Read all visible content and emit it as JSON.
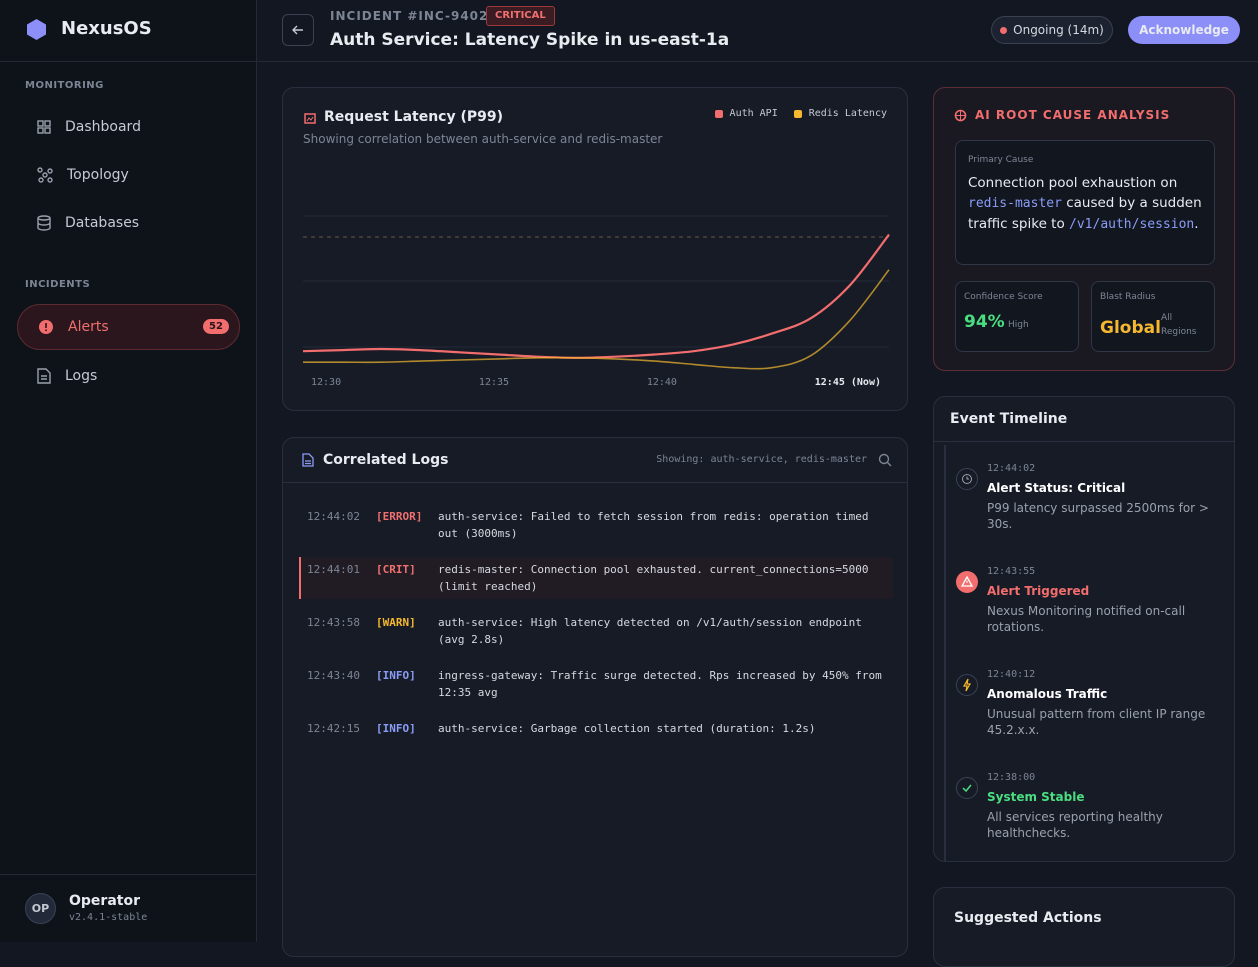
{
  "sidebar": {
    "brand": "NexusOS",
    "monitoring": {
      "title": "MONITORING",
      "items": [
        "Dashboard",
        "Topology",
        "Databases"
      ]
    },
    "incidents": {
      "title": "INCIDENTS",
      "items": [
        {
          "label": "Alerts",
          "badge": 52
        },
        {
          "label": "Logs"
        }
      ]
    },
    "user": {
      "initials": "OP",
      "name": "Operator",
      "version": "v2.4.1-stable"
    }
  },
  "header": {
    "incident_id": "INCIDENT #INC-9402",
    "severity": "CRITICAL",
    "title": "Auth Service: Latency Spike in us-east-1a",
    "status": "Ongoing (14m)",
    "action": "Acknowledge"
  },
  "chart_data": {
    "type": "line",
    "title": "Request Latency (P99)",
    "subtitle": "Showing correlation between auth-service and redis-master",
    "categories": [
      "12:30",
      null,
      null,
      null,
      null,
      "12:35",
      null,
      null,
      null,
      null,
      "12:40",
      null,
      null,
      null,
      null,
      "12:45 (Now)"
    ],
    "series": [
      {
        "name": "Auth API",
        "color": "#f26d6d",
        "values": [
          9,
          9.5,
          10,
          9.5,
          8.5,
          7.5,
          6.5,
          6,
          6.5,
          7.5,
          9,
          12,
          17,
          24,
          39,
          62
        ]
      },
      {
        "name": "Redis Latency",
        "color": "#f5b82e",
        "values": [
          4,
          4,
          4,
          4.5,
          5,
          5.5,
          6,
          6,
          5.5,
          4.5,
          3,
          1.5,
          1.5,
          7,
          23,
          46
        ]
      }
    ],
    "ylim": [
      0,
      100
    ]
  },
  "logs": {
    "title": "Correlated Logs",
    "filter": "Showing: auth-service, redis-master",
    "entries": [
      {
        "time": "12:44:02",
        "level": "[ERROR]",
        "message": "auth-service: Failed to fetch session from redis: operation timed out (3000ms)"
      },
      {
        "time": "12:44:01",
        "level": "[CRIT]",
        "message": "redis-master: Connection pool exhausted. current_connections=5000 (limit reached)"
      },
      {
        "time": "12:43:58",
        "level": "[WARN]",
        "message": "auth-service: High latency detected on /v1/auth/session endpoint (avg 2.8s)"
      },
      {
        "time": "12:43:40",
        "level": "[INFO]",
        "message": "ingress-gateway: Traffic surge detected. Rps increased by 450% from 12:35 avg"
      },
      {
        "time": "12:42:15",
        "level": "[INFO]",
        "message": "auth-service: Garbage collection started (duration: 1.2s)"
      }
    ]
  },
  "rca": {
    "title": "AI ROOT CAUSE ANALYSIS",
    "primary_label": "Primary Cause",
    "cause": [
      "Connection pool exhaustion on ",
      "redis-master",
      " caused by a sudden traffic spike to ",
      "/v1/auth/session",
      "."
    ],
    "confidence": {
      "label": "Confidence Score",
      "value": "94%",
      "qualifier": "High"
    },
    "blast": {
      "label": "Blast Radius",
      "value": "Global",
      "qualifier": "All Regions"
    }
  },
  "timeline": {
    "title": "Event Timeline",
    "events": [
      {
        "time": "12:44:02",
        "title": "Alert Status: Critical",
        "description": "P99 latency surpassed 2500ms for > 30s."
      },
      {
        "time": "12:43:55",
        "title": "Alert Triggered",
        "description": "Nexus Monitoring notified on-call rotations."
      },
      {
        "time": "12:40:12",
        "title": "Anomalous Traffic",
        "description": "Unusual pattern from client IP range 45.2.x.x."
      },
      {
        "time": "12:38:00",
        "title": "System Stable",
        "description": "All services reporting healthy healthchecks."
      }
    ]
  },
  "suggested": {
    "title": "Suggested Actions"
  }
}
